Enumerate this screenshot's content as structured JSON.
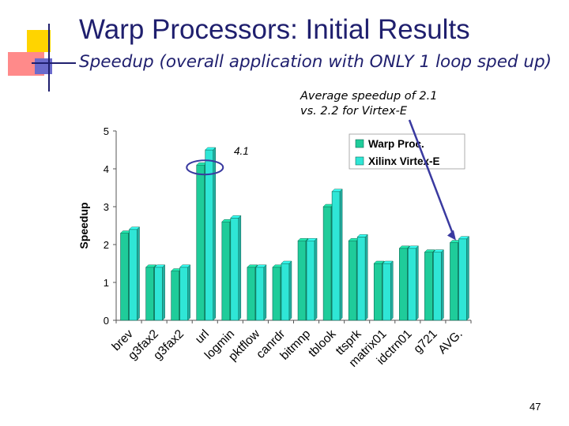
{
  "slide": {
    "title": "Warp Processors: Initial Results",
    "subtitle": "Speedup (overall application with ONLY 1 loop sped up)",
    "annotation": {
      "line1": "Average speedup of 2.1",
      "line2": "vs. 2.2 for Virtex-E"
    },
    "callout_value": "4.1",
    "page_number": "47",
    "colors": {
      "title": "#1f1f6e",
      "deco_yellow": "#ffd400",
      "deco_pink": "#ff8a8a",
      "deco_blue": "#6b6bcc",
      "arrow": "#3a3aa0"
    }
  },
  "chart_data": {
    "type": "bar",
    "ylabel": "Speedup",
    "xlabel": "",
    "ylim": [
      0,
      5
    ],
    "yticks": [
      "0",
      "1",
      "2",
      "3",
      "4",
      "5"
    ],
    "grid": false,
    "legend_position": "top-right",
    "categories": [
      "brev",
      "g3fax2",
      "g3fax2",
      "url",
      "logmin",
      "pktflow",
      "canrdr",
      "bitmnp",
      "tblook",
      "ttsprk",
      "matrix01",
      "idctrn01",
      "g721",
      "AVG."
    ],
    "series": [
      {
        "name": "Warp Proc.",
        "color": "#1fcc9a",
        "values": [
          2.3,
          1.4,
          1.3,
          4.1,
          2.6,
          1.4,
          1.4,
          2.1,
          3.0,
          2.1,
          1.5,
          1.9,
          1.8,
          2.05
        ]
      },
      {
        "name": "Xilinx Virtex-E",
        "color": "#2fe6d6",
        "values": [
          2.4,
          1.4,
          1.4,
          4.5,
          2.7,
          1.4,
          1.5,
          2.1,
          3.4,
          2.2,
          1.5,
          1.9,
          1.8,
          2.15
        ]
      }
    ]
  }
}
